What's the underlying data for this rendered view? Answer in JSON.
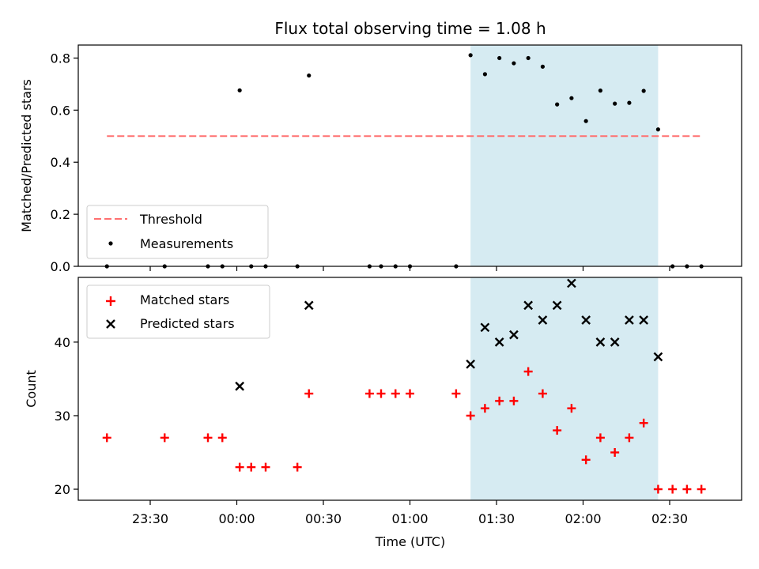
{
  "chart_data": {
    "type": "scatter",
    "title": "Flux total observing time = 1.08 h",
    "xlabel": "Time (UTC)",
    "x_ticks": [
      "23:30",
      "00:00",
      "00:30",
      "01:00",
      "01:30",
      "02:00",
      "02:30"
    ],
    "highlight_span": {
      "start": "01:21",
      "end": "02:26",
      "color": "#add8e6"
    },
    "top_panel": {
      "ylabel": "Matched/Predicted stars",
      "ylim": [
        0,
        0.85
      ],
      "y_ticks": [
        "0.0",
        "0.2",
        "0.4",
        "0.6",
        "0.8"
      ],
      "legend_position": "lower-left",
      "threshold": {
        "name": "Threshold",
        "value": 0.5,
        "x_start": "23:15",
        "x_end": "02:41",
        "color": "#ff7070"
      },
      "measurements": {
        "name": "Measurements",
        "color": "#000000",
        "points": [
          {
            "x": "23:15",
            "y": 0.0
          },
          {
            "x": "23:35",
            "y": 0.0
          },
          {
            "x": "23:50",
            "y": 0.0
          },
          {
            "x": "23:55",
            "y": 0.0
          },
          {
            "x": "00:01",
            "y": 0.676
          },
          {
            "x": "00:05",
            "y": 0.0
          },
          {
            "x": "00:10",
            "y": 0.0
          },
          {
            "x": "00:21",
            "y": 0.0
          },
          {
            "x": "00:25",
            "y": 0.733
          },
          {
            "x": "00:46",
            "y": 0.0
          },
          {
            "x": "00:50",
            "y": 0.0
          },
          {
            "x": "00:55",
            "y": 0.0
          },
          {
            "x": "01:00",
            "y": 0.0
          },
          {
            "x": "01:16",
            "y": 0.0
          },
          {
            "x": "01:21",
            "y": 0.811
          },
          {
            "x": "01:26",
            "y": 0.738
          },
          {
            "x": "01:31",
            "y": 0.8
          },
          {
            "x": "01:36",
            "y": 0.78
          },
          {
            "x": "01:41",
            "y": 0.8
          },
          {
            "x": "01:46",
            "y": 0.767
          },
          {
            "x": "01:51",
            "y": 0.622
          },
          {
            "x": "01:56",
            "y": 0.646
          },
          {
            "x": "02:01",
            "y": 0.558
          },
          {
            "x": "02:06",
            "y": 0.675
          },
          {
            "x": "02:11",
            "y": 0.625
          },
          {
            "x": "02:16",
            "y": 0.628
          },
          {
            "x": "02:21",
            "y": 0.674
          },
          {
            "x": "02:26",
            "y": 0.526
          },
          {
            "x": "02:31",
            "y": 0.0
          },
          {
            "x": "02:36",
            "y": 0.0
          },
          {
            "x": "02:41",
            "y": 0.0
          }
        ]
      }
    },
    "bottom_panel": {
      "ylabel": "Count",
      "ylim": [
        18.5,
        48.8
      ],
      "y_ticks": [
        "20",
        "30",
        "40"
      ],
      "legend_position": "upper-left",
      "matched": {
        "name": "Matched stars",
        "color": "#ff0000",
        "points": [
          {
            "x": "23:15",
            "y": 27
          },
          {
            "x": "23:35",
            "y": 27
          },
          {
            "x": "23:50",
            "y": 27
          },
          {
            "x": "23:55",
            "y": 27
          },
          {
            "x": "00:01",
            "y": 23
          },
          {
            "x": "00:05",
            "y": 23
          },
          {
            "x": "00:10",
            "y": 23
          },
          {
            "x": "00:21",
            "y": 23
          },
          {
            "x": "00:25",
            "y": 33
          },
          {
            "x": "00:46",
            "y": 33
          },
          {
            "x": "00:50",
            "y": 33
          },
          {
            "x": "00:55",
            "y": 33
          },
          {
            "x": "01:00",
            "y": 33
          },
          {
            "x": "01:16",
            "y": 33
          },
          {
            "x": "01:21",
            "y": 30
          },
          {
            "x": "01:26",
            "y": 31
          },
          {
            "x": "01:31",
            "y": 32
          },
          {
            "x": "01:36",
            "y": 32
          },
          {
            "x": "01:41",
            "y": 36
          },
          {
            "x": "01:46",
            "y": 33
          },
          {
            "x": "01:51",
            "y": 28
          },
          {
            "x": "01:56",
            "y": 31
          },
          {
            "x": "02:01",
            "y": 24
          },
          {
            "x": "02:06",
            "y": 27
          },
          {
            "x": "02:11",
            "y": 25
          },
          {
            "x": "02:16",
            "y": 27
          },
          {
            "x": "02:21",
            "y": 29
          },
          {
            "x": "02:26",
            "y": 20
          },
          {
            "x": "02:31",
            "y": 20
          },
          {
            "x": "02:36",
            "y": 20
          },
          {
            "x": "02:41",
            "y": 20
          }
        ]
      },
      "predicted": {
        "name": "Predicted stars",
        "color": "#000000",
        "points": [
          {
            "x": "00:01",
            "y": 34
          },
          {
            "x": "00:25",
            "y": 45
          },
          {
            "x": "01:21",
            "y": 37
          },
          {
            "x": "01:26",
            "y": 42
          },
          {
            "x": "01:31",
            "y": 40
          },
          {
            "x": "01:36",
            "y": 41
          },
          {
            "x": "01:41",
            "y": 45
          },
          {
            "x": "01:46",
            "y": 43
          },
          {
            "x": "01:51",
            "y": 45
          },
          {
            "x": "01:56",
            "y": 48
          },
          {
            "x": "02:01",
            "y": 43
          },
          {
            "x": "02:06",
            "y": 40
          },
          {
            "x": "02:11",
            "y": 40
          },
          {
            "x": "02:16",
            "y": 43
          },
          {
            "x": "02:21",
            "y": 43
          },
          {
            "x": "02:26",
            "y": 38
          }
        ]
      }
    }
  }
}
